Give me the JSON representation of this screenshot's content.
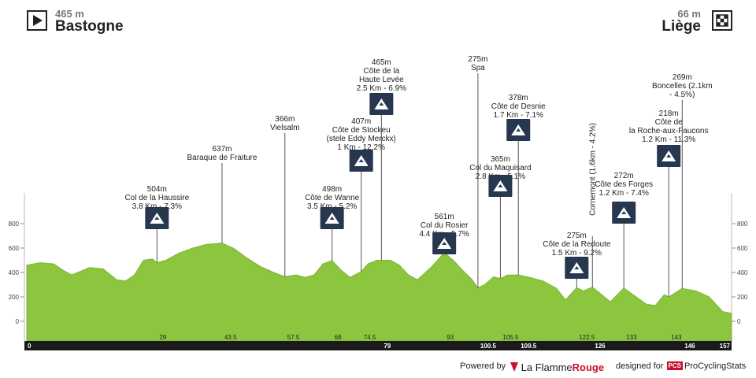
{
  "start": {
    "altitude": "465 m",
    "city": "Bastogne",
    "icon": "play-icon"
  },
  "finish": {
    "altitude": "66 m",
    "city": "Liège",
    "icon": "checkered-flag-icon"
  },
  "footer": {
    "powered_by": "Powered by",
    "brand_a": "La Flamme",
    "brand_b": "Rouge",
    "designed_for": "designed for",
    "pcs_badge": "PCS",
    "pcs_name": "ProCyclingStats"
  },
  "chart_data": {
    "type": "area",
    "x_unit": "km",
    "y_unit": "m",
    "ylim": [
      -50,
      900
    ],
    "xlim": [
      0,
      157
    ],
    "yticks": [
      0,
      200,
      400,
      600,
      800
    ],
    "profile": [
      [
        0,
        460
      ],
      [
        3,
        480
      ],
      [
        6,
        470
      ],
      [
        8,
        420
      ],
      [
        10,
        380
      ],
      [
        12,
        410
      ],
      [
        14,
        440
      ],
      [
        17,
        430
      ],
      [
        20,
        340
      ],
      [
        22,
        330
      ],
      [
        24,
        380
      ],
      [
        26,
        500
      ],
      [
        28,
        510
      ],
      [
        29,
        480
      ],
      [
        31,
        500
      ],
      [
        34,
        560
      ],
      [
        37,
        600
      ],
      [
        40,
        630
      ],
      [
        43.5,
        640
      ],
      [
        46,
        600
      ],
      [
        49,
        520
      ],
      [
        52,
        450
      ],
      [
        55,
        400
      ],
      [
        57.5,
        366
      ],
      [
        60,
        380
      ],
      [
        62,
        360
      ],
      [
        64,
        380
      ],
      [
        66,
        470
      ],
      [
        68,
        498
      ],
      [
        70,
        420
      ],
      [
        72,
        360
      ],
      [
        74.5,
        407
      ],
      [
        76,
        470
      ],
      [
        78,
        500
      ],
      [
        81,
        500
      ],
      [
        83,
        460
      ],
      [
        85,
        380
      ],
      [
        87,
        340
      ],
      [
        90,
        440
      ],
      [
        93,
        561
      ],
      [
        95,
        500
      ],
      [
        97,
        420
      ],
      [
        99,
        350
      ],
      [
        100.5,
        275
      ],
      [
        102,
        300
      ],
      [
        104,
        365
      ],
      [
        105.5,
        350
      ],
      [
        107,
        378
      ],
      [
        109.5,
        380
      ],
      [
        112,
        360
      ],
      [
        115,
        330
      ],
      [
        118,
        270
      ],
      [
        120,
        175
      ],
      [
        122.5,
        275
      ],
      [
        124,
        250
      ],
      [
        126,
        280
      ],
      [
        128,
        220
      ],
      [
        130,
        160
      ],
      [
        133,
        272
      ],
      [
        135,
        220
      ],
      [
        138,
        140
      ],
      [
        140,
        130
      ],
      [
        142,
        218
      ],
      [
        143,
        200
      ],
      [
        146,
        269
      ],
      [
        149,
        250
      ],
      [
        152,
        200
      ],
      [
        155,
        80
      ],
      [
        157,
        66
      ]
    ],
    "km_markers": [
      {
        "km": 0,
        "label": "0",
        "white": true
      },
      {
        "km": 29,
        "label": "29"
      },
      {
        "km": 43.5,
        "label": "43.5"
      },
      {
        "km": 57.5,
        "label": "57.5"
      },
      {
        "km": 68,
        "label": "68"
      },
      {
        "km": 74.5,
        "label": "74.5"
      },
      {
        "km": 79,
        "label": "79",
        "white": true
      },
      {
        "km": 93,
        "label": "93"
      },
      {
        "km": 100.5,
        "label": "100.5",
        "white": true
      },
      {
        "km": 105.5,
        "label": "105.5"
      },
      {
        "km": 109.5,
        "label": "109.5",
        "white": true
      },
      {
        "km": 122.5,
        "label": "122.5"
      },
      {
        "km": 126,
        "label": "126",
        "white": true
      },
      {
        "km": 133,
        "label": "133"
      },
      {
        "km": 143,
        "label": "143"
      },
      {
        "km": 146,
        "label": "146",
        "white": true
      },
      {
        "km": 157,
        "label": "157",
        "white": true
      }
    ],
    "climbs": [
      {
        "name": "Col de la Haussire",
        "km": 29,
        "summit": "504m",
        "lines": [
          "504m",
          "Col de la Haussire",
          "3.8 Km - 7.3%"
        ],
        "icon": true
      },
      {
        "name": "Baraque de Fraiture",
        "km": 43.5,
        "summit": "637m",
        "lines": [
          "637m",
          "Baraque de Fraiture"
        ],
        "icon": false
      },
      {
        "name": "Vielsalm",
        "km": 57.5,
        "summit": "366m",
        "lines": [
          "366m",
          "Vielsalm"
        ],
        "icon": false
      },
      {
        "name": "Côte de Wanne",
        "km": 68,
        "summit": "498m",
        "lines": [
          "498m",
          "Côte de Wanne",
          "3.5 Km - 5.2%"
        ],
        "icon": true
      },
      {
        "name": "Côte de Stockeu",
        "km": 74.5,
        "summit": "407m",
        "lines": [
          "407m",
          "Côte de Stockeu",
          "(stele Eddy Merckx)",
          "1 Km - 12.2%"
        ],
        "icon": true
      },
      {
        "name": "Côte de la Haute Levée",
        "km": 79,
        "summit": "465m",
        "lines": [
          "465m",
          "Côte de la",
          "Haute Levée",
          "2.5 Km - 6.9%"
        ],
        "icon": true
      },
      {
        "name": "Col du Rosier",
        "km": 93,
        "summit": "561m",
        "lines": [
          "561m",
          "Col du Rosier",
          "4.4 Km - 5.7%"
        ],
        "icon": true
      },
      {
        "name": "Spa",
        "km": 100.5,
        "summit": "275m",
        "lines": [
          "275m",
          "Spa"
        ],
        "icon": false
      },
      {
        "name": "Col du Maquisard",
        "km": 105.5,
        "summit": "365m",
        "lines": [
          "365m",
          "Col du Maquisard",
          "2.8 Km - 5.1%"
        ],
        "icon": true
      },
      {
        "name": "Côte de Desnie",
        "km": 109.5,
        "summit": "378m",
        "lines": [
          "378m",
          "Côte de Desnie",
          "1.7 Km - 7.1%"
        ],
        "icon": true
      },
      {
        "name": "Côte de la Redoute",
        "km": 122.5,
        "summit": "275m",
        "lines": [
          "275m",
          "Côte de la Redoute",
          "1.5 Km - 9.2%"
        ],
        "icon": true
      },
      {
        "name": "Cornemont",
        "km": 126,
        "summit": "",
        "lines": [
          "Cornemont (1.6km - 4.2%)"
        ],
        "icon": false,
        "vertical": true
      },
      {
        "name": "Côte des Forges",
        "km": 133,
        "summit": "272m",
        "lines": [
          "272m",
          "Côte des Forges",
          "1.2 Km - 7.4%"
        ],
        "icon": true
      },
      {
        "name": "Côte de la Roche-aux-Faucons",
        "km": 143,
        "summit": "218m",
        "lines": [
          "218m",
          "Côte de",
          "la Roche-aux-Faucons",
          "1.2 Km - 11.3%"
        ],
        "icon": true
      },
      {
        "name": "Boncelles",
        "km": 146,
        "summit": "269m",
        "lines": [
          "269m",
          "Boncelles (2.1km",
          "- 4.5%)"
        ],
        "icon": false
      }
    ],
    "colors": {
      "fill": "#8cc63f",
      "fill_top": "#7ab534",
      "bar": "#1a1a1a",
      "icon_bg": "#26374f",
      "line": "#555555"
    }
  }
}
